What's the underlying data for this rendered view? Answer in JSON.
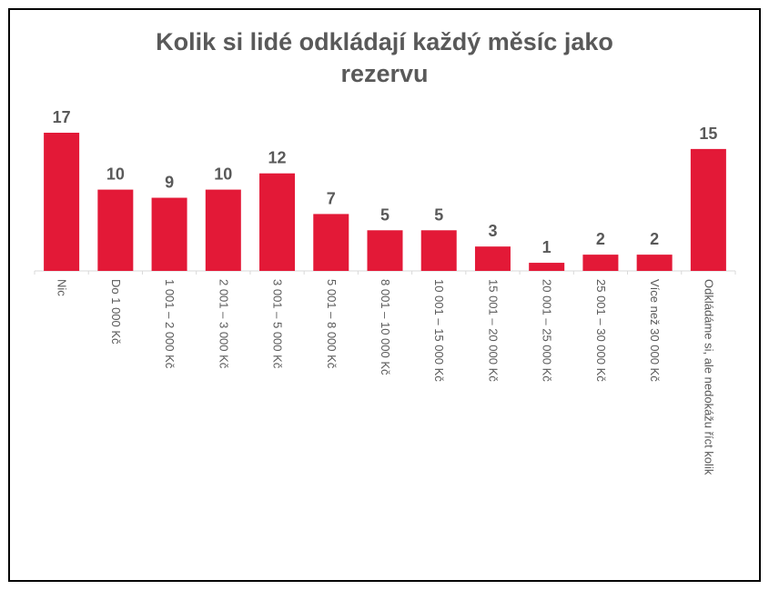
{
  "chart_data": {
    "type": "bar",
    "title_lines": [
      "Kolik si lidé odkládají každý měsíc jako",
      "rezervu"
    ],
    "categories": [
      "Nic",
      "Do 1 000 Kč",
      "1 001 – 2 000 Kč",
      "2 001 – 3 000 Kč",
      "3 001 – 5 000 Kč",
      "5 001 – 8 000 Kč",
      "8 001 – 10 000 Kč",
      "10 001 – 15 000 Kč",
      "15 001 – 20 000 Kč",
      "20 001 – 25 000 Kč",
      "25 001 – 30 000 Kč",
      "Více než 30 000 Kč",
      "Odkládáme si, ale nedokážu říct kolik"
    ],
    "values": [
      17,
      10,
      9,
      10,
      12,
      7,
      5,
      5,
      3,
      1,
      2,
      2,
      15
    ],
    "bar_color": "#E31937",
    "text_color": "#595959",
    "ylim": [
      0,
      17
    ],
    "grid": false,
    "legend": "none"
  }
}
